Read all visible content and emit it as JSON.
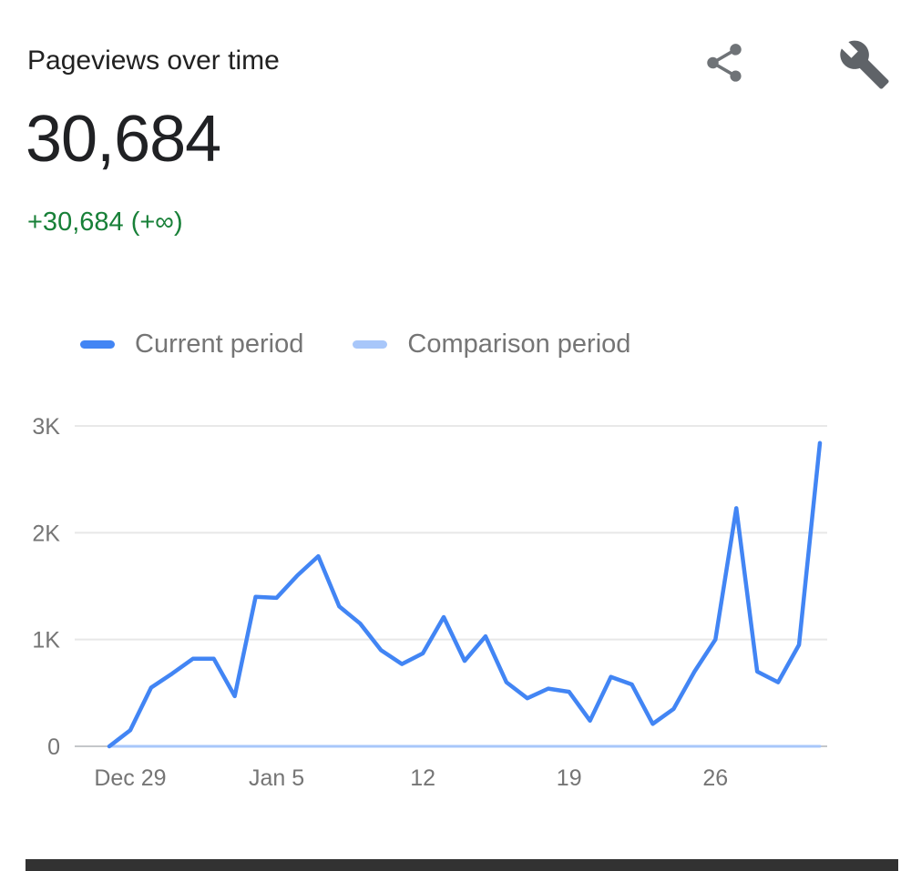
{
  "header": {
    "title": "Pageviews over time"
  },
  "summary": {
    "total": "30,684",
    "delta": "+30,684 (+∞)",
    "delta_color": "#188038"
  },
  "legend": [
    {
      "label": "Current period",
      "color": "#4285f4"
    },
    {
      "label": "Comparison period",
      "color": "#a8c7fa"
    }
  ],
  "icons": {
    "share": "share-icon",
    "tool": "wrench-icon"
  },
  "chart_data": {
    "type": "line",
    "title": "Pageviews over time",
    "xlabel": "",
    "ylabel": "",
    "ylim": [
      0,
      3000
    ],
    "grid": true,
    "legend_position": "top",
    "x": [
      "Dec 28",
      "Dec 29",
      "Dec 30",
      "Dec 31",
      "Jan 1",
      "Jan 2",
      "Jan 3",
      "Jan 4",
      "Jan 5",
      "Jan 6",
      "Jan 7",
      "Jan 8",
      "Jan 9",
      "Jan 10",
      "Jan 11",
      "Jan 12",
      "Jan 13",
      "Jan 14",
      "Jan 15",
      "Jan 16",
      "Jan 17",
      "Jan 18",
      "Jan 19",
      "Jan 20",
      "Jan 21",
      "Jan 22",
      "Jan 23",
      "Jan 24",
      "Jan 25",
      "Jan 26",
      "Jan 27",
      "Jan 28",
      "Jan 29",
      "Jan 30",
      "Jan 31"
    ],
    "series": [
      {
        "name": "Current period",
        "color": "#4285f4",
        "values": [
          0,
          150,
          550,
          680,
          820,
          820,
          470,
          1400,
          1390,
          1600,
          1780,
          1310,
          1150,
          900,
          770,
          870,
          1210,
          800,
          1030,
          600,
          450,
          540,
          510,
          240,
          650,
          580,
          210,
          350,
          700,
          1000,
          2230,
          700,
          600,
          950,
          2840
        ]
      },
      {
        "name": "Comparison period",
        "color": "#a8c7fa",
        "values": [
          0,
          0,
          0,
          0,
          0,
          0,
          0,
          0,
          0,
          0,
          0,
          0,
          0,
          0,
          0,
          0,
          0,
          0,
          0,
          0,
          0,
          0,
          0,
          0,
          0,
          0,
          0,
          0,
          0,
          0,
          0,
          0,
          0,
          0,
          0
        ]
      }
    ],
    "yticks": [
      {
        "value": 0,
        "label": "0"
      },
      {
        "value": 1000,
        "label": "1K"
      },
      {
        "value": 2000,
        "label": "2K"
      },
      {
        "value": 3000,
        "label": "3K"
      }
    ],
    "xticks": [
      {
        "index": 1,
        "label": "Dec 29"
      },
      {
        "index": 8,
        "label": "Jan 5"
      },
      {
        "index": 15,
        "label": "12"
      },
      {
        "index": 22,
        "label": "19"
      },
      {
        "index": 29,
        "label": "26"
      }
    ]
  }
}
